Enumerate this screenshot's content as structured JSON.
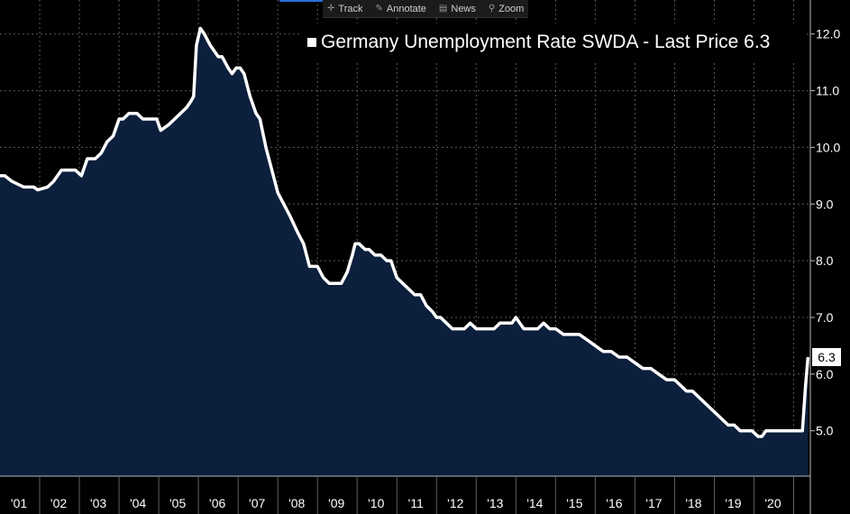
{
  "toolbar": {
    "items": [
      {
        "label": "Track",
        "icon": "crosshair-icon"
      },
      {
        "label": "Annotate",
        "icon": "pencil-icon"
      },
      {
        "label": "News",
        "icon": "news-icon"
      },
      {
        "label": "Zoom",
        "icon": "magnifier-icon"
      }
    ]
  },
  "legend": {
    "text": "Germany Unemployment Rate SWDA - Last Price 6.3"
  },
  "last_price": {
    "label": "6.3"
  },
  "colors": {
    "background": "#000000",
    "area_fill": "#0c1f3c",
    "line": "#ffffff",
    "grid": "#5a5a5a"
  },
  "chart_data": {
    "type": "area",
    "title": "Germany Unemployment Rate SWDA - Last Price 6.3",
    "xlabel": "",
    "ylabel": "",
    "y_axis_position": "right",
    "grid": true,
    "ylim": [
      4.2,
      12.6
    ],
    "yticks": [
      5.0,
      6.0,
      7.0,
      8.0,
      9.0,
      10.0,
      11.0,
      12.0
    ],
    "ytick_labels": [
      "5.0",
      "6.0",
      "7.0",
      "8.0",
      "9.0",
      "10.0",
      "11.0",
      "12.0"
    ],
    "xlim": [
      2000.0,
      2020.42
    ],
    "xticks": [
      2001,
      2002,
      2003,
      2004,
      2005,
      2006,
      2007,
      2008,
      2009,
      2010,
      2011,
      2012,
      2013,
      2014,
      2015,
      2016,
      2017,
      2018,
      2019,
      2020
    ],
    "xtick_labels": [
      "'01",
      "'02",
      "'03",
      "'04",
      "'05",
      "'06",
      "'07",
      "'08",
      "'09",
      "'10",
      "'11",
      "'12",
      "'13",
      "'14",
      "'15",
      "'16",
      "'17",
      "'18",
      "'19",
      "'20"
    ],
    "series": [
      {
        "x": [
          2000.0,
          2000.12,
          2000.3,
          2000.6,
          2000.85,
          2000.95,
          2001.2,
          2001.35,
          2001.55,
          2001.75,
          2001.9,
          2002.05,
          2002.2,
          2002.4,
          2002.55,
          2002.7,
          2002.85,
          2003.0,
          2003.1,
          2003.25,
          2003.45,
          2003.6,
          2003.8,
          2003.95,
          2004.05,
          2004.25,
          2004.4,
          2004.55,
          2004.7,
          2004.8,
          2004.88,
          2004.95,
          2005.05,
          2005.15,
          2005.3,
          2005.5,
          2005.6,
          2005.75,
          2005.85,
          2005.95,
          2006.05,
          2006.15,
          2006.3,
          2006.45,
          2006.55,
          2006.7,
          2006.85,
          2007.0,
          2007.15,
          2007.3,
          2007.5,
          2007.65,
          2007.8,
          2007.9,
          2008.0,
          2008.15,
          2008.3,
          2008.45,
          2008.6,
          2008.75,
          2008.88,
          2008.95,
          2009.05,
          2009.2,
          2009.3,
          2009.45,
          2009.6,
          2009.75,
          2009.85,
          2010.0,
          2010.15,
          2010.3,
          2010.45,
          2010.6,
          2010.75,
          2010.9,
          2011.0,
          2011.1,
          2011.25,
          2011.4,
          2011.55,
          2011.7,
          2011.85,
          2012.0,
          2012.15,
          2012.3,
          2012.45,
          2012.6,
          2012.75,
          2012.9,
          2013.0,
          2013.2,
          2013.4,
          2013.55,
          2013.7,
          2013.85,
          2014.0,
          2014.2,
          2014.4,
          2014.6,
          2014.8,
          2015.0,
          2015.2,
          2015.4,
          2015.6,
          2015.8,
          2016.0,
          2016.2,
          2016.4,
          2016.6,
          2016.8,
          2017.0,
          2017.15,
          2017.3,
          2017.45,
          2017.6,
          2017.75,
          2017.9,
          2018.05,
          2018.2,
          2018.35,
          2018.5,
          2018.65,
          2018.8,
          2018.95,
          2019.1,
          2019.2,
          2019.3,
          2019.5,
          2019.7,
          2019.9,
          2020.05,
          2020.15,
          2020.22,
          2020.3,
          2020.36
        ],
        "y": [
          9.5,
          9.5,
          9.4,
          9.3,
          9.3,
          9.25,
          9.3,
          9.4,
          9.6,
          9.6,
          9.6,
          9.5,
          9.8,
          9.8,
          9.9,
          10.1,
          10.2,
          10.5,
          10.5,
          10.6,
          10.6,
          10.5,
          10.5,
          10.5,
          10.3,
          10.4,
          10.5,
          10.6,
          10.7,
          10.8,
          10.9,
          11.8,
          12.1,
          12.0,
          11.8,
          11.6,
          11.6,
          11.4,
          11.3,
          11.4,
          11.4,
          11.3,
          10.9,
          10.6,
          10.5,
          10.0,
          9.6,
          9.2,
          9.0,
          8.8,
          8.5,
          8.3,
          7.9,
          7.9,
          7.9,
          7.7,
          7.6,
          7.6,
          7.6,
          7.8,
          8.1,
          8.3,
          8.3,
          8.2,
          8.2,
          8.1,
          8.1,
          8.0,
          8.0,
          7.7,
          7.6,
          7.5,
          7.4,
          7.4,
          7.2,
          7.1,
          7.0,
          7.0,
          6.9,
          6.8,
          6.8,
          6.8,
          6.9,
          6.8,
          6.8,
          6.8,
          6.8,
          6.9,
          6.9,
          6.9,
          7.0,
          6.8,
          6.8,
          6.8,
          6.9,
          6.8,
          6.8,
          6.7,
          6.7,
          6.7,
          6.6,
          6.5,
          6.4,
          6.4,
          6.3,
          6.3,
          6.2,
          6.1,
          6.1,
          6.0,
          5.9,
          5.9,
          5.8,
          5.7,
          5.7,
          5.6,
          5.5,
          5.4,
          5.3,
          5.2,
          5.1,
          5.1,
          5.0,
          5.0,
          5.0,
          4.9,
          4.9,
          5.0,
          5.0,
          5.0,
          5.0,
          5.0,
          5.0,
          5.0,
          5.8,
          6.3
        ]
      }
    ]
  }
}
